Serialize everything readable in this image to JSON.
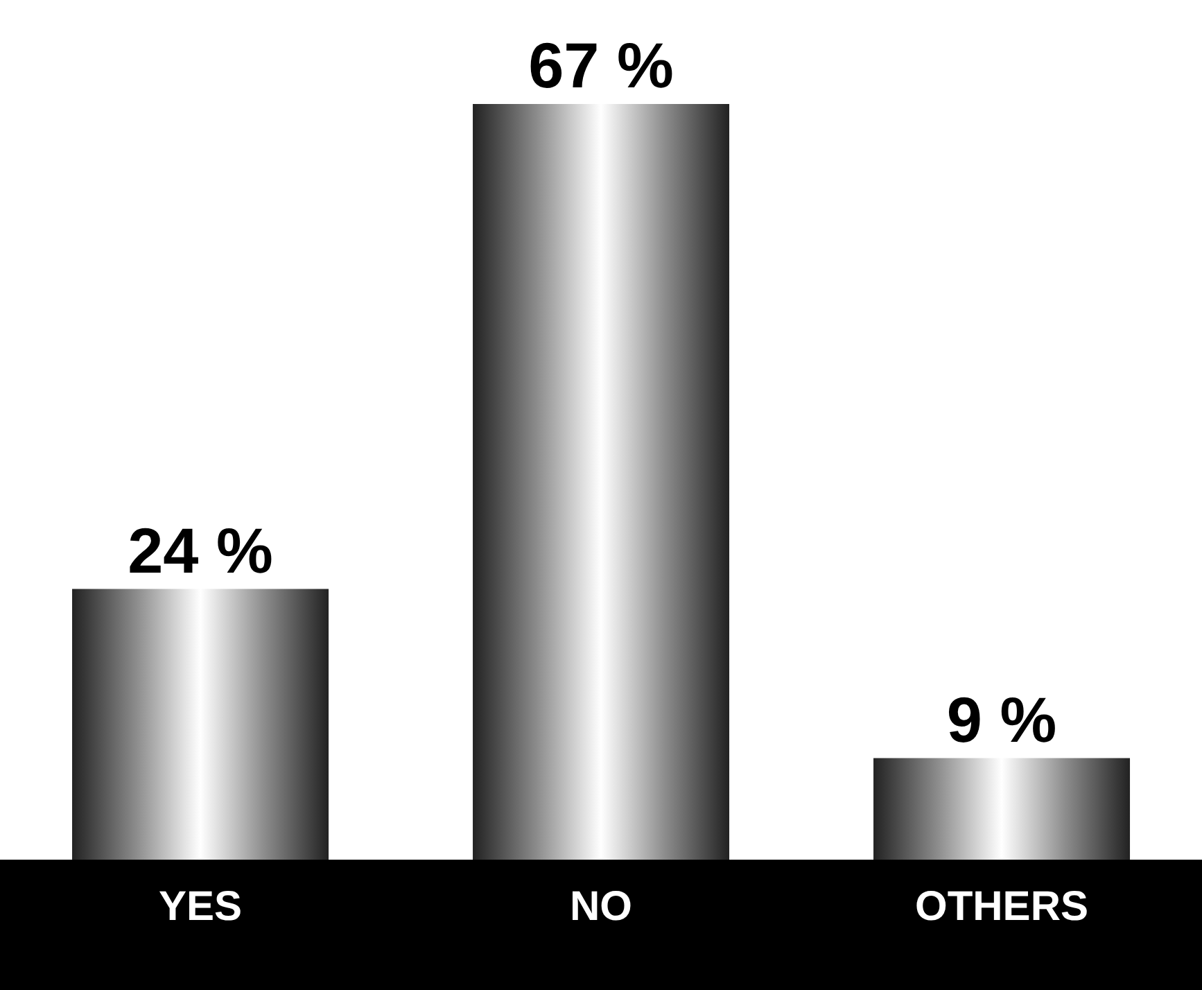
{
  "chart_data": {
    "type": "bar",
    "categories": [
      "YES",
      "NO",
      "OTHERS"
    ],
    "values": [
      24,
      67,
      9
    ],
    "value_labels": [
      "24 %",
      "67 %",
      "9 %"
    ],
    "color": "#8c8c8c"
  }
}
